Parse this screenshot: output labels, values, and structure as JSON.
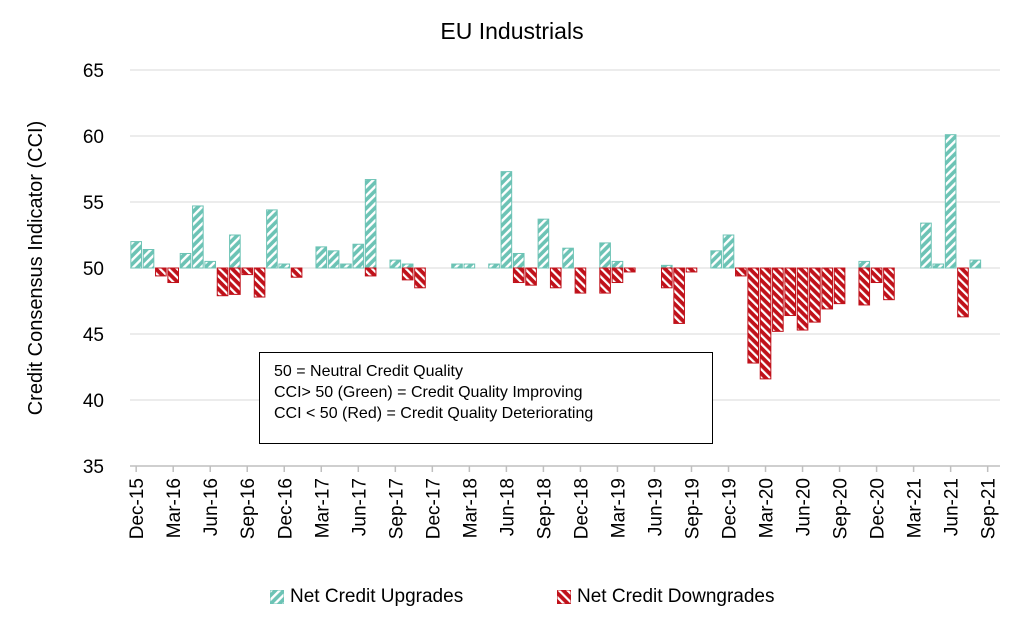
{
  "chart_data": {
    "type": "bar",
    "title": "EU Industrials",
    "ylabel": "Credit Consensus Indicator (CCI)",
    "xlabel": "",
    "ylim": [
      35,
      65
    ],
    "yticks": [
      35,
      40,
      45,
      50,
      55,
      60,
      65
    ],
    "baseline": 50,
    "grid": true,
    "legend_position": "bottom",
    "x_tick_labels": [
      "Dec-15",
      "Mar-16",
      "Jun-16",
      "Sep-16",
      "Dec-16",
      "Mar-17",
      "Jun-17",
      "Sep-17",
      "Dec-17",
      "Mar-18",
      "Jun-18",
      "Sep-18",
      "Dec-18",
      "Mar-19",
      "Jun-19",
      "Sep-19",
      "Dec-19",
      "Mar-20",
      "Jun-20",
      "Sep-20",
      "Dec-20",
      "Mar-21",
      "Jun-21",
      "Sep-21"
    ],
    "categories": [
      "Dec-15",
      "Jan-16",
      "Feb-16",
      "Mar-16",
      "Apr-16",
      "May-16",
      "Jun-16",
      "Jul-16",
      "Aug-16",
      "Sep-16",
      "Oct-16",
      "Nov-16",
      "Dec-16",
      "Jan-17",
      "Feb-17",
      "Mar-17",
      "Apr-17",
      "May-17",
      "Jun-17",
      "Jul-17",
      "Aug-17",
      "Sep-17",
      "Oct-17",
      "Nov-17",
      "Dec-17",
      "Jan-18",
      "Feb-18",
      "Mar-18",
      "Apr-18",
      "May-18",
      "Jun-18",
      "Jul-18",
      "Aug-18",
      "Sep-18",
      "Oct-18",
      "Nov-18",
      "Dec-18",
      "Jan-19",
      "Feb-19",
      "Mar-19",
      "Apr-19",
      "May-19",
      "Jun-19",
      "Jul-19",
      "Aug-19",
      "Sep-19",
      "Oct-19",
      "Nov-19",
      "Dec-19",
      "Jan-20",
      "Feb-20",
      "Mar-20",
      "Apr-20",
      "May-20",
      "Jun-20",
      "Jul-20",
      "Aug-20",
      "Sep-20",
      "Oct-20",
      "Nov-20",
      "Dec-20",
      "Jan-21",
      "Feb-21",
      "Mar-21",
      "Apr-21",
      "May-21",
      "Jun-21",
      "Jul-21",
      "Aug-21",
      "Sep-21"
    ],
    "series": [
      {
        "name": "Net Credit Upgrades",
        "color": "#6cc3b5",
        "values": [
          52.0,
          51.4,
          null,
          null,
          51.1,
          54.7,
          50.5,
          null,
          52.5,
          null,
          null,
          54.4,
          50.3,
          null,
          null,
          51.6,
          51.3,
          50.3,
          51.8,
          56.7,
          null,
          50.6,
          50.3,
          null,
          null,
          null,
          50.3,
          50.3,
          null,
          50.3,
          57.3,
          51.1,
          null,
          53.7,
          null,
          51.5,
          null,
          null,
          51.9,
          50.5,
          null,
          null,
          null,
          50.2,
          null,
          null,
          null,
          51.3,
          52.5,
          null,
          null,
          null,
          null,
          null,
          null,
          null,
          null,
          null,
          null,
          50.5,
          null,
          null,
          null,
          null,
          53.4,
          50.3,
          60.1,
          null,
          50.6,
          null
        ]
      },
      {
        "name": "Net Credit Downgrades",
        "color": "#c0111a",
        "values": [
          null,
          null,
          49.4,
          48.9,
          null,
          null,
          null,
          47.9,
          48.0,
          49.5,
          47.8,
          null,
          null,
          49.3,
          null,
          null,
          null,
          null,
          null,
          49.4,
          null,
          null,
          49.1,
          48.5,
          null,
          null,
          null,
          null,
          null,
          null,
          null,
          48.9,
          48.7,
          null,
          48.5,
          null,
          48.1,
          null,
          48.1,
          48.9,
          49.7,
          null,
          null,
          48.5,
          45.8,
          49.7,
          null,
          null,
          null,
          49.4,
          42.8,
          41.6,
          45.2,
          46.4,
          45.3,
          45.9,
          46.9,
          47.3,
          null,
          47.2,
          48.9,
          47.6,
          null,
          null,
          null,
          null,
          null,
          46.3,
          null,
          null
        ]
      }
    ]
  },
  "note": {
    "line1": "50 = Neutral Credit Quality",
    "line2": "CCI> 50 (Green) = Credit Quality Improving",
    "line3": "CCI < 50 (Red) = Credit Quality Deteriorating"
  },
  "legend": {
    "upgrades_label": "Net Credit Upgrades",
    "downgrades_label": "Net Credit Downgrades"
  }
}
